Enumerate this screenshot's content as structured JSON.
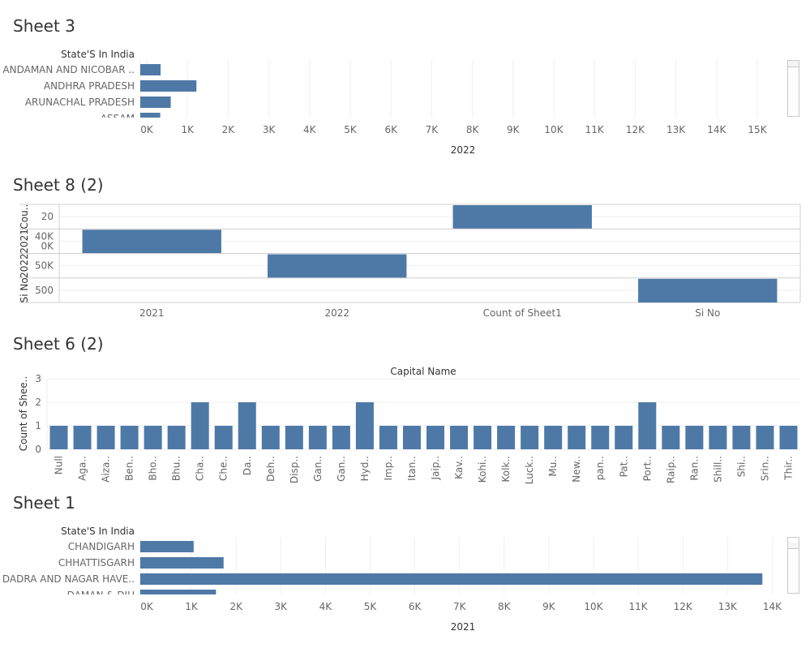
{
  "colors": {
    "bar": "#4e79a7",
    "grid": "#efefef",
    "axis": "#cfcfcf",
    "text": "#666666",
    "title": "#333333"
  },
  "chart_data": [
    {
      "sheet": "Sheet 3",
      "type": "bar",
      "orientation": "horizontal",
      "row_header": "State'S In India",
      "categories": [
        "ANDAMAN AND NICOBAR ..",
        "ANDHRA PRADESH",
        "ARUNACHAL PRADESH",
        "ASSAM"
      ],
      "values": [
        340,
        1220,
        590,
        330
      ],
      "xlabel": "2022",
      "xlim": [
        0,
        16000
      ],
      "xticks": [
        "0K",
        "1K",
        "2K",
        "3K",
        "4K",
        "5K",
        "6K",
        "7K",
        "8K",
        "9K",
        "10K",
        "11K",
        "12K",
        "13K",
        "14K",
        "15K"
      ],
      "scrollable": true,
      "grid": true
    },
    {
      "sheet": "Sheet 8 (2)",
      "type": "bar",
      "orientation": "vertical",
      "columns": [
        "2021",
        "2022",
        "Count of Sheet1",
        "Si No"
      ],
      "rows": [
        {
          "label": "Cou..",
          "ticks": [
            "20"
          ],
          "column": "Count of Sheet1"
        },
        {
          "label": "2021",
          "ticks": [
            "40K",
            "0K"
          ],
          "column": "2021"
        },
        {
          "label": "2022",
          "ticks": [
            "50K"
          ],
          "column": "2022"
        },
        {
          "label": "Si No",
          "ticks": [
            "500"
          ],
          "column": "Si No"
        }
      ],
      "grid": true
    },
    {
      "sheet": "Sheet 6 (2)",
      "type": "bar",
      "orientation": "vertical",
      "title": "Capital Name",
      "ylabel": "Count of Shee..",
      "ylim": [
        0,
        3
      ],
      "yticks": [
        "0",
        "1",
        "2",
        "3"
      ],
      "categories": [
        "Null",
        "Aga..",
        "Aiza..",
        "Ben..",
        "Bho..",
        "Bhu..",
        "Cha..",
        "Che..",
        "Da..",
        "Deh..",
        "Disp..",
        "Gan..",
        "Gan..",
        "Hyd..",
        "Imp..",
        "Itan..",
        "Jaip..",
        "Kav..",
        "Kohi..",
        "Kolk..",
        "Luck..",
        "Mu..",
        "New..",
        "pan..",
        "Pat..",
        "Port..",
        "Raip..",
        "Ran..",
        "Shill..",
        "Shi..",
        "Srin..",
        "Thir.."
      ],
      "values": [
        1,
        1,
        1,
        1,
        1,
        1,
        2,
        1,
        2,
        1,
        1,
        1,
        1,
        2,
        1,
        1,
        1,
        1,
        1,
        1,
        1,
        1,
        1,
        1,
        1,
        2,
        1,
        1,
        1,
        1,
        1,
        1
      ],
      "grid": true
    },
    {
      "sheet": "Sheet 1",
      "type": "bar",
      "orientation": "horizontal",
      "row_header": "State'S In India",
      "categories": [
        "CHANDIGARH",
        "CHHATTISGARH",
        "DADRA AND NAGAR HAVE..",
        "DAMAN & DIU"
      ],
      "values": [
        1050,
        1720,
        13780,
        1550
      ],
      "xlabel": "2021",
      "xlim": [
        0,
        14700
      ],
      "xticks": [
        "0K",
        "1K",
        "2K",
        "3K",
        "4K",
        "5K",
        "6K",
        "7K",
        "8K",
        "9K",
        "10K",
        "11K",
        "12K",
        "13K",
        "14K"
      ],
      "scrollable": true,
      "grid": true
    }
  ]
}
